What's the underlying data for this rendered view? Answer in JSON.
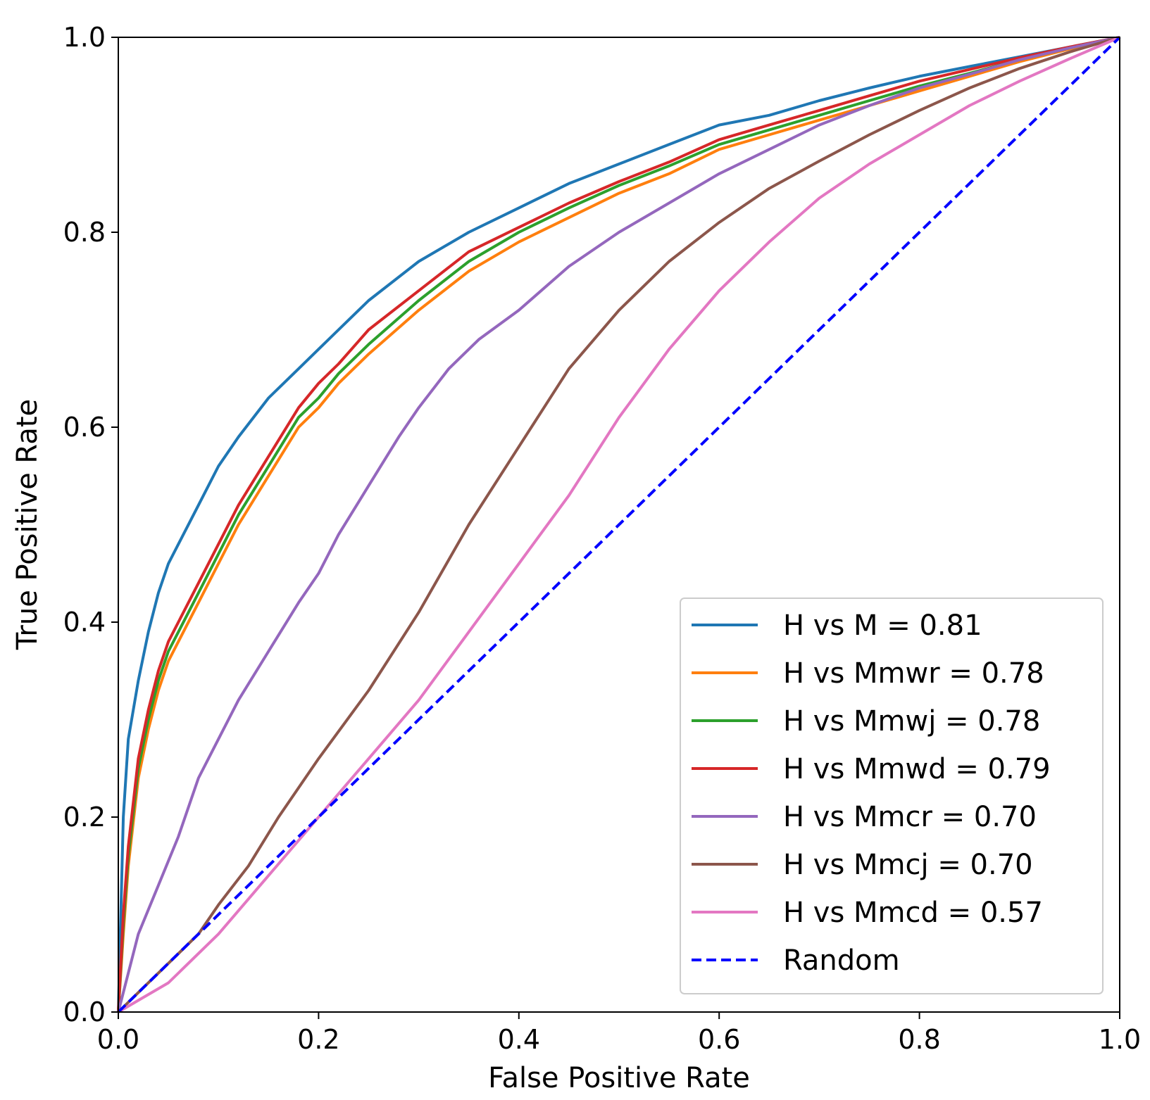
{
  "chart_data": {
    "type": "line",
    "title": "",
    "xlabel": "False Positive Rate",
    "ylabel": "True Positive Rate",
    "xlim": [
      0.0,
      1.0
    ],
    "ylim": [
      0.0,
      1.0
    ],
    "xticks": [
      "0.0",
      "0.2",
      "0.4",
      "0.6",
      "0.8",
      "1.0"
    ],
    "yticks": [
      "0.0",
      "0.2",
      "0.4",
      "0.6",
      "0.8",
      "1.0"
    ],
    "grid": false,
    "legend_position": "lower-right",
    "series": [
      {
        "name": "H vs M = 0.81",
        "color": "#1f77b4",
        "x": [
          0.0,
          0.005,
          0.01,
          0.02,
          0.03,
          0.04,
          0.05,
          0.06,
          0.08,
          0.1,
          0.12,
          0.15,
          0.18,
          0.2,
          0.22,
          0.25,
          0.3,
          0.35,
          0.4,
          0.45,
          0.5,
          0.55,
          0.6,
          0.65,
          0.7,
          0.75,
          0.8,
          0.85,
          0.9,
          0.95,
          1.0
        ],
        "y": [
          0.0,
          0.2,
          0.28,
          0.34,
          0.39,
          0.43,
          0.46,
          0.48,
          0.52,
          0.56,
          0.59,
          0.63,
          0.66,
          0.68,
          0.7,
          0.73,
          0.77,
          0.8,
          0.825,
          0.85,
          0.87,
          0.89,
          0.91,
          0.92,
          0.935,
          0.948,
          0.96,
          0.97,
          0.98,
          0.99,
          1.0
        ]
      },
      {
        "name": "H vs Mmwr = 0.78",
        "color": "#ff7f0e",
        "x": [
          0.0,
          0.005,
          0.01,
          0.02,
          0.03,
          0.04,
          0.05,
          0.06,
          0.08,
          0.1,
          0.12,
          0.15,
          0.18,
          0.2,
          0.22,
          0.25,
          0.3,
          0.35,
          0.4,
          0.45,
          0.5,
          0.55,
          0.6,
          0.65,
          0.7,
          0.75,
          0.8,
          0.85,
          0.9,
          0.95,
          1.0
        ],
        "y": [
          0.0,
          0.08,
          0.15,
          0.24,
          0.29,
          0.33,
          0.36,
          0.38,
          0.42,
          0.46,
          0.5,
          0.55,
          0.6,
          0.62,
          0.645,
          0.675,
          0.72,
          0.76,
          0.79,
          0.815,
          0.84,
          0.86,
          0.885,
          0.9,
          0.915,
          0.93,
          0.945,
          0.96,
          0.975,
          0.988,
          1.0
        ]
      },
      {
        "name": "H vs Mmwj = 0.78",
        "color": "#2ca02c",
        "x": [
          0.0,
          0.005,
          0.01,
          0.02,
          0.03,
          0.04,
          0.05,
          0.06,
          0.08,
          0.1,
          0.12,
          0.15,
          0.18,
          0.2,
          0.22,
          0.25,
          0.3,
          0.35,
          0.4,
          0.45,
          0.5,
          0.55,
          0.6,
          0.65,
          0.7,
          0.75,
          0.8,
          0.85,
          0.9,
          0.95,
          1.0
        ],
        "y": [
          0.0,
          0.09,
          0.16,
          0.25,
          0.3,
          0.34,
          0.37,
          0.39,
          0.43,
          0.47,
          0.51,
          0.56,
          0.61,
          0.63,
          0.655,
          0.685,
          0.73,
          0.77,
          0.8,
          0.825,
          0.848,
          0.868,
          0.89,
          0.905,
          0.92,
          0.935,
          0.95,
          0.963,
          0.977,
          0.989,
          1.0
        ]
      },
      {
        "name": "H vs Mmwd = 0.79",
        "color": "#d62728",
        "x": [
          0.0,
          0.005,
          0.01,
          0.02,
          0.03,
          0.04,
          0.05,
          0.06,
          0.08,
          0.1,
          0.12,
          0.15,
          0.18,
          0.2,
          0.22,
          0.25,
          0.3,
          0.35,
          0.4,
          0.45,
          0.5,
          0.55,
          0.6,
          0.65,
          0.7,
          0.75,
          0.8,
          0.85,
          0.9,
          0.95,
          1.0
        ],
        "y": [
          0.0,
          0.1,
          0.17,
          0.26,
          0.31,
          0.35,
          0.38,
          0.4,
          0.44,
          0.48,
          0.52,
          0.57,
          0.62,
          0.645,
          0.665,
          0.7,
          0.74,
          0.78,
          0.805,
          0.83,
          0.852,
          0.872,
          0.895,
          0.91,
          0.925,
          0.94,
          0.955,
          0.967,
          0.979,
          0.99,
          1.0
        ]
      },
      {
        "name": "H vs Mmcr = 0.70",
        "color": "#9467bd",
        "x": [
          0.0,
          0.01,
          0.02,
          0.04,
          0.06,
          0.08,
          0.1,
          0.12,
          0.15,
          0.18,
          0.2,
          0.22,
          0.25,
          0.28,
          0.3,
          0.33,
          0.36,
          0.4,
          0.45,
          0.5,
          0.55,
          0.6,
          0.65,
          0.7,
          0.75,
          0.8,
          0.85,
          0.9,
          0.95,
          1.0
        ],
        "y": [
          0.0,
          0.04,
          0.08,
          0.13,
          0.18,
          0.24,
          0.28,
          0.32,
          0.37,
          0.42,
          0.45,
          0.49,
          0.54,
          0.59,
          0.62,
          0.66,
          0.69,
          0.72,
          0.765,
          0.8,
          0.83,
          0.86,
          0.885,
          0.91,
          0.93,
          0.948,
          0.962,
          0.977,
          0.989,
          1.0
        ]
      },
      {
        "name": "H vs Mmcj = 0.70",
        "color": "#8c564b",
        "x": [
          0.0,
          0.02,
          0.05,
          0.08,
          0.1,
          0.13,
          0.16,
          0.2,
          0.25,
          0.3,
          0.35,
          0.4,
          0.45,
          0.5,
          0.55,
          0.6,
          0.65,
          0.7,
          0.75,
          0.8,
          0.85,
          0.9,
          0.95,
          1.0
        ],
        "y": [
          0.0,
          0.02,
          0.05,
          0.08,
          0.11,
          0.15,
          0.2,
          0.26,
          0.33,
          0.41,
          0.5,
          0.58,
          0.66,
          0.72,
          0.77,
          0.81,
          0.845,
          0.873,
          0.9,
          0.925,
          0.948,
          0.968,
          0.985,
          1.0
        ]
      },
      {
        "name": "H vs Mmcd = 0.57",
        "color": "#e377c2",
        "x": [
          0.0,
          0.05,
          0.1,
          0.15,
          0.2,
          0.25,
          0.3,
          0.35,
          0.4,
          0.45,
          0.5,
          0.55,
          0.6,
          0.65,
          0.7,
          0.75,
          0.8,
          0.85,
          0.9,
          0.95,
          1.0
        ],
        "y": [
          0.0,
          0.03,
          0.08,
          0.14,
          0.2,
          0.26,
          0.32,
          0.39,
          0.46,
          0.53,
          0.61,
          0.68,
          0.74,
          0.79,
          0.835,
          0.87,
          0.9,
          0.93,
          0.955,
          0.978,
          1.0
        ]
      },
      {
        "name": "Random",
        "color": "#0000ff",
        "dashed": true,
        "x": [
          0.0,
          1.0
        ],
        "y": [
          0.0,
          1.0
        ]
      }
    ]
  }
}
